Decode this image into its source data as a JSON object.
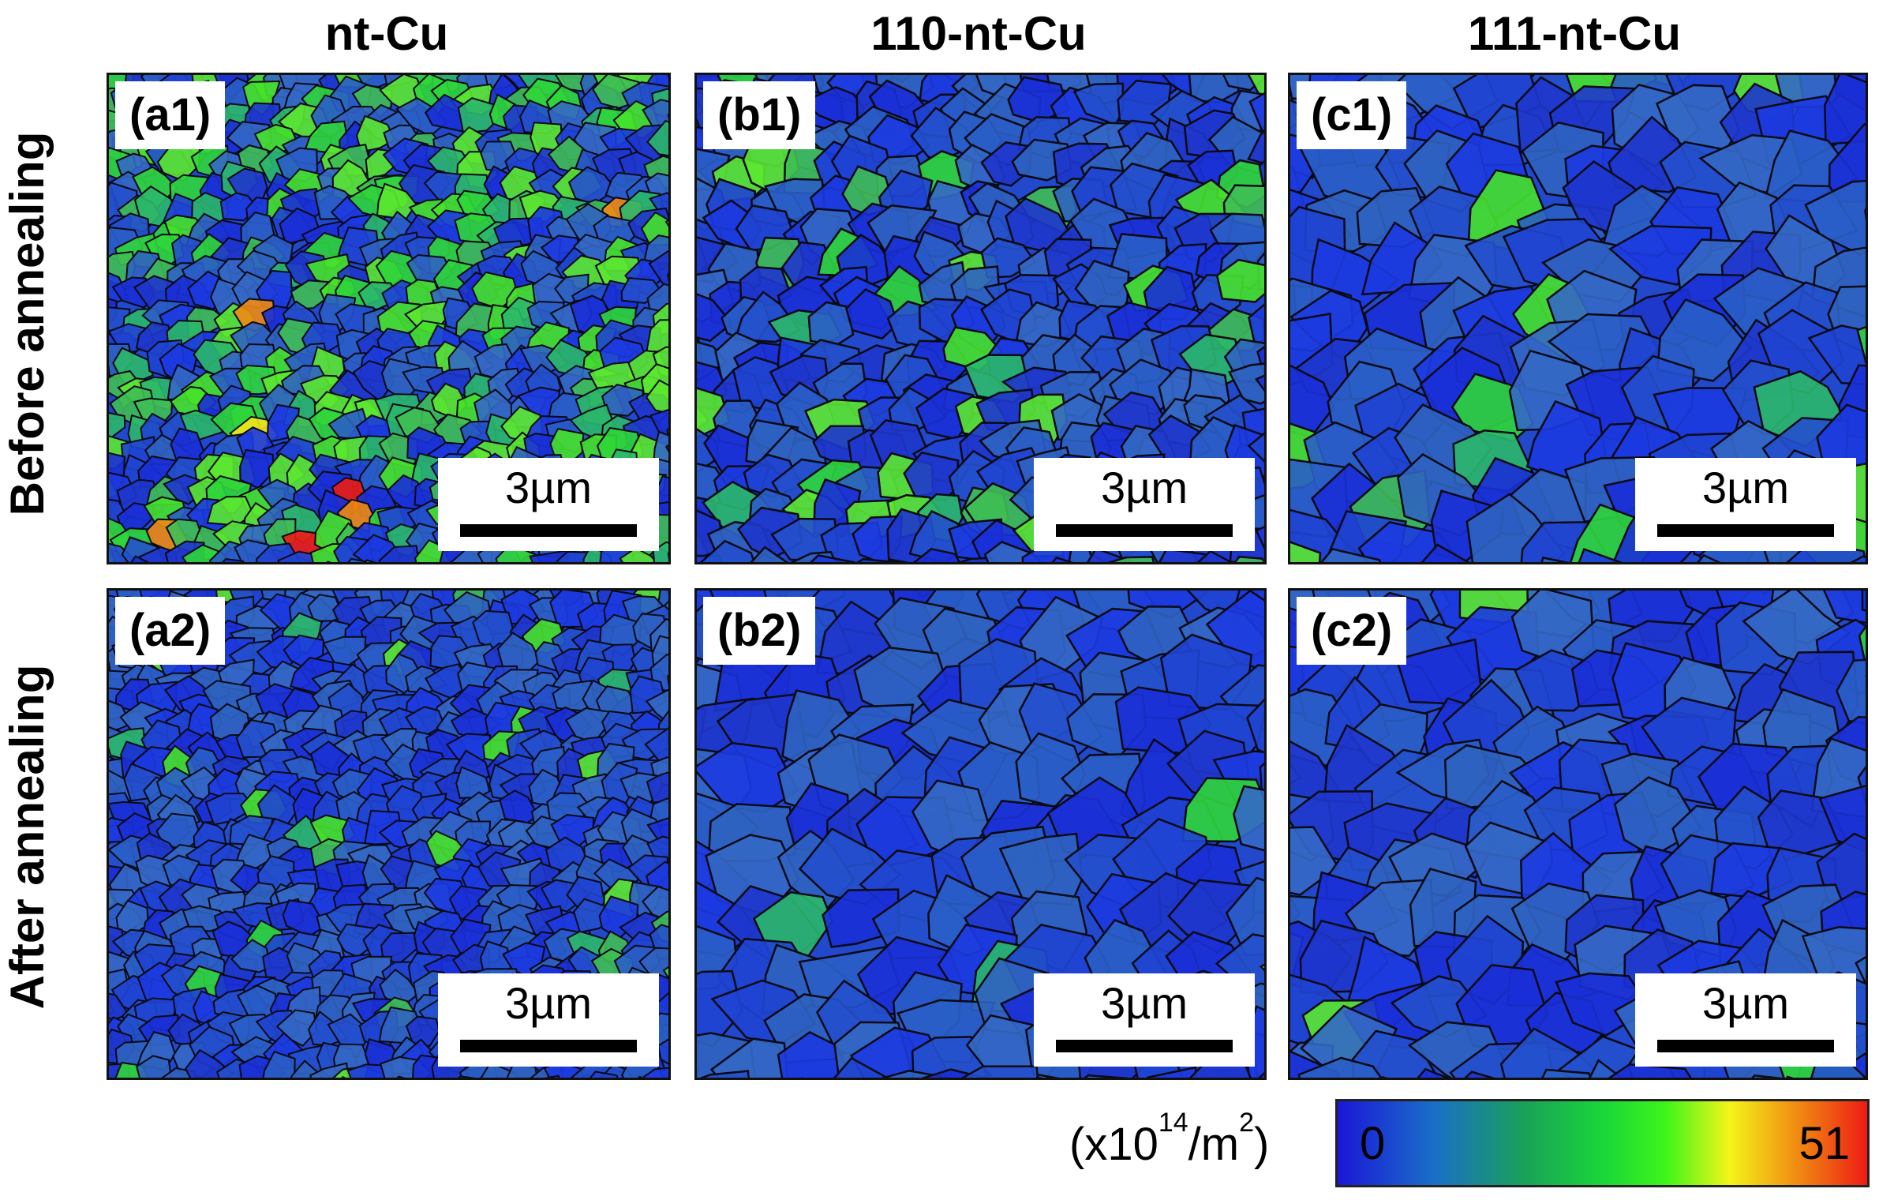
{
  "columns": [
    {
      "title": "nt-Cu"
    },
    {
      "title": "110-nt-Cu"
    },
    {
      "title": "111-nt-Cu"
    }
  ],
  "rows": [
    {
      "title": "Before annealing"
    },
    {
      "title": "After annealing"
    }
  ],
  "panels": [
    {
      "label": "(a1)",
      "scale": "3µm",
      "grain_scale": "fine",
      "green_level": "high"
    },
    {
      "label": "(b1)",
      "scale": "3µm",
      "grain_scale": "medium",
      "green_level": "medium"
    },
    {
      "label": "(c1)",
      "scale": "3µm",
      "grain_scale": "coarse",
      "green_level": "medium"
    },
    {
      "label": "(a2)",
      "scale": "3µm",
      "grain_scale": "fine",
      "green_level": "low"
    },
    {
      "label": "(b2)",
      "scale": "3µm",
      "grain_scale": "coarse",
      "green_level": "low"
    },
    {
      "label": "(c2)",
      "scale": "3µm",
      "grain_scale": "coarse",
      "green_level": "low"
    }
  ],
  "colorbar": {
    "unit_base": "(x10",
    "unit_exp": "14",
    "unit_mid": "/m",
    "unit_exp2": "2",
    "unit_end": ")",
    "min": "0",
    "max": "51",
    "colors": [
      "#1a17d8",
      "#1aa05a",
      "#3ef51a",
      "#f4f51a",
      "#ee1c14"
    ]
  }
}
